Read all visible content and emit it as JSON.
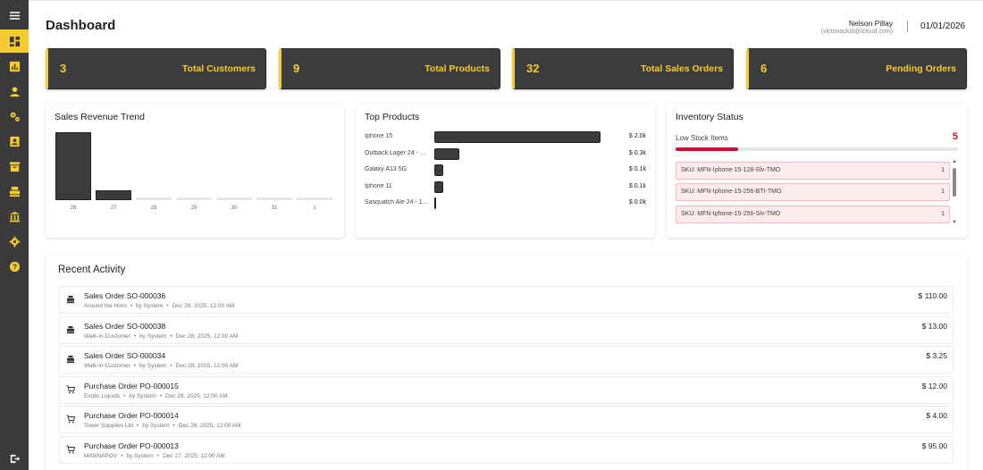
{
  "sidebar": {
    "items": [
      {
        "icon": "menu-icon",
        "active": false
      },
      {
        "icon": "dashboard-icon",
        "active": true
      },
      {
        "icon": "reports-icon",
        "active": false
      },
      {
        "icon": "customers-icon",
        "active": false
      },
      {
        "icon": "products-icon",
        "active": false
      },
      {
        "icon": "contacts-icon",
        "active": false
      },
      {
        "icon": "inventory-icon",
        "active": false
      },
      {
        "icon": "sales-icon",
        "active": false
      },
      {
        "icon": "bank-icon",
        "active": false
      },
      {
        "icon": "settings-icon",
        "active": false
      },
      {
        "icon": "help-icon",
        "active": false
      }
    ],
    "logout_icon": "logout-icon"
  },
  "header": {
    "title": "Dashboard",
    "user_name": "Nelson Pillay",
    "user_email": "(victoriaclub@icloud.com)",
    "date": "01/01/2026"
  },
  "stats": [
    {
      "value": "3",
      "label": "Total Customers"
    },
    {
      "value": "9",
      "label": "Total Products"
    },
    {
      "value": "32",
      "label": "Total Sales Orders"
    },
    {
      "value": "6",
      "label": "Pending Orders"
    }
  ],
  "revenue": {
    "title": "Sales Revenue Trend"
  },
  "top_products": {
    "title": "Top Products",
    "items": [
      {
        "name": "Iphone 15",
        "value_label": "$ 2.0k",
        "value": 2.0
      },
      {
        "name": "Outback Lager 24 - …",
        "value_label": "$ 0.3k",
        "value": 0.3
      },
      {
        "name": "Galaxy A13 5G",
        "value_label": "$ 0.1k",
        "value": 0.1
      },
      {
        "name": "Iphone 11",
        "value_label": "$ 0.1k",
        "value": 0.1
      },
      {
        "name": "Sasquatch Ale 24 - 1…",
        "value_label": "$ 0.0k",
        "value": 0.0
      }
    ]
  },
  "inventory": {
    "title": "Inventory Status",
    "low_stock_label": "Low Stock Items",
    "low_stock_count": "5",
    "low_stock_fraction": 0.22,
    "items": [
      {
        "sku": "SKU: MFN-Iphone-15-128-Slv-TMO",
        "qty": "1"
      },
      {
        "sku": "SKU: MFN-Iphone-15-256-BTI-TMO",
        "qty": "1"
      },
      {
        "sku": "SKU: MFN-Iphone-15-256-Slv-TMO",
        "qty": "1"
      }
    ]
  },
  "activity": {
    "title": "Recent Activity",
    "rows": [
      {
        "icon": "sales-order-icon",
        "name": "Sales Order SO-000036",
        "party": "Around the Horn",
        "by": "by System",
        "date": "Dec 28, 2025, 12:00 AM",
        "amount": "$ 110.00"
      },
      {
        "icon": "sales-order-icon",
        "name": "Sales Order SO-000038",
        "party": "Walk-in-Customer",
        "by": "by System",
        "date": "Dec 28, 2025, 12:00 AM",
        "amount": "$ 13.00"
      },
      {
        "icon": "sales-order-icon",
        "name": "Sales Order SO-000034",
        "party": "Walk-in-Customer",
        "by": "by System",
        "date": "Dec 28, 2025, 12:00 AM",
        "amount": "$ 3.25"
      },
      {
        "icon": "purchase-order-icon",
        "name": "Purchase Order PO-000015",
        "party": "Exotic Liquids",
        "by": "by System",
        "date": "Dec 28, 2025, 12:00 AM",
        "amount": "$ 12.00"
      },
      {
        "icon": "purchase-order-icon",
        "name": "Purchase Order PO-000014",
        "party": "Tower Supplies Ltd",
        "by": "by System",
        "date": "Dec 28, 2025, 12:00 AM",
        "amount": "$ 4.00"
      },
      {
        "icon": "purchase-order-icon",
        "name": "Purchase Order PO-000013",
        "party": "MANNAPOV",
        "by": "by System",
        "date": "Dec 27, 2025, 12:00 AM",
        "amount": "$ 95.00"
      }
    ]
  },
  "colors": {
    "accent": "#f5cd2e",
    "sidebar": "#3a3a3a",
    "card": "#3c3c3c",
    "danger": "#c8102e"
  },
  "chart_data": {
    "type": "bar",
    "title": "Sales Revenue Trend",
    "categories": [
      "26",
      "27",
      "28",
      "29",
      "30",
      "31",
      "1"
    ],
    "values": [
      130.0,
      18.0,
      0,
      0,
      0,
      0,
      0
    ],
    "xlabel": "",
    "ylabel": "",
    "ylim": [
      0,
      135
    ],
    "grid": false
  }
}
